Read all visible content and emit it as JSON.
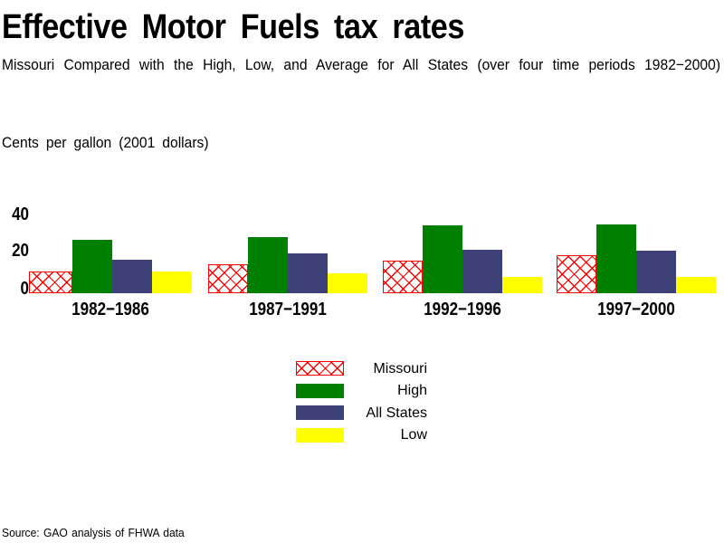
{
  "title": "Effective Motor Fuels tax rates",
  "subtitle": "Missouri Compared with the High, Low, and Average for All States (over four time periods 1982−2000)",
  "units_label": "Cents per gallon (2001 dollars)",
  "source_note": "Source: GAO analysis of FHWA data",
  "colors": {
    "missouri": "#ff0000",
    "high": "#008000",
    "all_states": "#3e4078",
    "low": "#ffff00"
  },
  "chart_data": {
    "type": "bar",
    "categories": [
      "1982−1986",
      "1987−1991",
      "1992−1996",
      "1997−2000"
    ],
    "series": [
      {
        "name": "Missouri",
        "key": "missouri",
        "values": [
          11,
          14.5,
          16.5,
          19
        ]
      },
      {
        "name": "High",
        "key": "high",
        "values": [
          27,
          28,
          34,
          34.5
        ]
      },
      {
        "name": "All States",
        "key": "all_states",
        "values": [
          17,
          20,
          22,
          21.5
        ]
      },
      {
        "name": "Low",
        "key": "low",
        "values": [
          11,
          10,
          8,
          8
        ]
      }
    ],
    "title": "Effective Motor Fuels tax rates",
    "xlabel": "",
    "ylabel": "Cents per gallon (2001 dollars)",
    "yticks": [
      0,
      20,
      40
    ],
    "ylim": [
      0,
      45
    ],
    "grid": false,
    "legend_position": "below-center"
  }
}
